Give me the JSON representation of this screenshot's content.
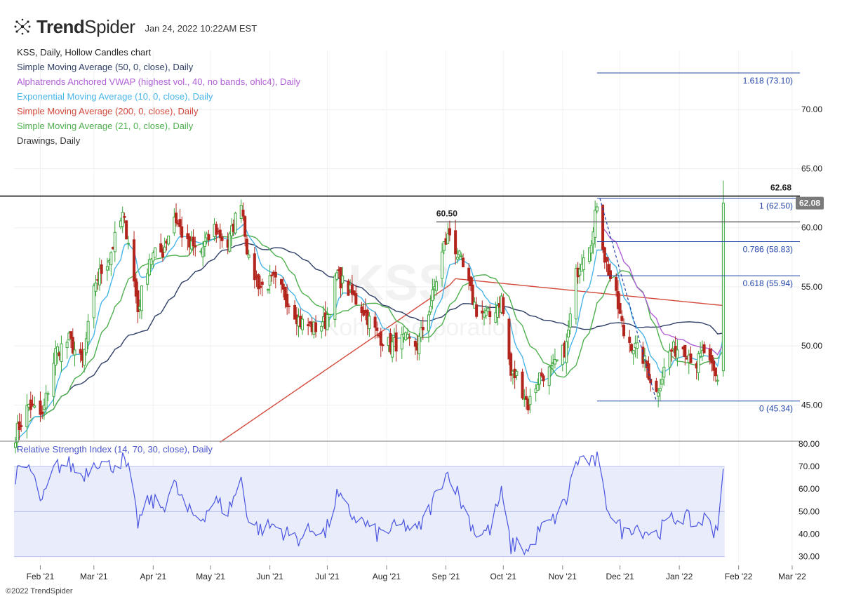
{
  "header": {
    "brand_bold": "Trend",
    "brand_rest": "Spider",
    "timestamp": "Jan 24, 2022 10:22AM EST"
  },
  "legend": [
    {
      "text": "KSS, Daily, Hollow Candles chart",
      "color": "#222222"
    },
    {
      "text": "Simple Moving Average (50, 0, close), Daily",
      "color": "#2f3e66"
    },
    {
      "text": "Alphatrends Anchored VWAP (highest vol., 40, no bands, ohlc4), Daily",
      "color": "#b05fd6"
    },
    {
      "text": "Exponential Moving Average (10, 0, close), Daily",
      "color": "#49b5e8"
    },
    {
      "text": "Simple Moving Average (200, 0, close), Daily",
      "color": "#d24a3c"
    },
    {
      "text": "Simple Moving Average (21, 0, close), Daily",
      "color": "#4fb04f"
    },
    {
      "text": "Drawings, Daily",
      "color": "#333333"
    }
  ],
  "watermark": {
    "symbol": "KSS",
    "name": "Kohl's Corporation"
  },
  "rsi_title": "Relative Strength Index (14, 70, 30, close), Daily",
  "copyright": "©2022 TrendSpider",
  "colors": {
    "up_candle": "#3aa63a",
    "down_candle": "#b3241c",
    "sma50": "#2f3e66",
    "sma200": "#d24a3c",
    "sma21": "#4fb04f",
    "ema10": "#49b5e8",
    "vwap": "#b05fd6",
    "fib": "#2346a8",
    "rsi": "#4a55e0",
    "rsi_band": "#e9ecfb"
  },
  "chart_data": {
    "type": "candlestick",
    "symbol": "KSS",
    "interval": "Daily",
    "x_tick_labels": [
      "Feb '21",
      "Mar '21",
      "Apr '21",
      "May '21",
      "Jun '21",
      "Jul '21",
      "Aug '21",
      "Sep '21",
      "Oct '21",
      "Nov '21",
      "Dec '21",
      "Jan '22",
      "Feb '22",
      "Mar '22"
    ],
    "price_axis_labels": [
      "70.00",
      "65.00",
      "60.00",
      "55.00",
      "50.00",
      "45.00"
    ],
    "price_range": [
      42.0,
      75.0
    ],
    "last_price": "62.08",
    "resistance": {
      "value": 62.68,
      "label": "62.68"
    },
    "level_60_50": {
      "value": 60.5,
      "label": "60.50"
    },
    "fib_levels": [
      {
        "label": "1.618 (73.10)",
        "value": 73.1
      },
      {
        "label": "1 (62.50)",
        "value": 62.5
      },
      {
        "label": "0.786 (58.83)",
        "value": 58.83
      },
      {
        "label": "0.618 (55.94)",
        "value": 55.94
      },
      {
        "label": "0 (45.34)",
        "value": 45.34
      }
    ],
    "price_anchors": [
      [
        "2021-01-19",
        42.5
      ],
      [
        "2021-01-26",
        45.0
      ],
      [
        "2021-02-02",
        44.0
      ],
      [
        "2021-02-09",
        49.5
      ],
      [
        "2021-02-16",
        50.5
      ],
      [
        "2021-02-23",
        48.5
      ],
      [
        "2021-03-02",
        55.5
      ],
      [
        "2021-03-09",
        57.5
      ],
      [
        "2021-03-16",
        61.0
      ],
      [
        "2021-03-19",
        59.0
      ],
      [
        "2021-03-24",
        53.0
      ],
      [
        "2021-03-30",
        57.5
      ],
      [
        "2021-04-06",
        58.0
      ],
      [
        "2021-04-12",
        61.0
      ],
      [
        "2021-04-19",
        58.5
      ],
      [
        "2021-04-26",
        58.0
      ],
      [
        "2021-05-03",
        60.0
      ],
      [
        "2021-05-10",
        58.5
      ],
      [
        "2021-05-17",
        62.5
      ],
      [
        "2021-05-21",
        57.0
      ],
      [
        "2021-05-27",
        55.0
      ],
      [
        "2021-06-03",
        55.5
      ],
      [
        "2021-06-10",
        54.0
      ],
      [
        "2021-06-17",
        52.0
      ],
      [
        "2021-06-24",
        51.5
      ],
      [
        "2021-06-30",
        52.0
      ],
      [
        "2021-07-06",
        56.0
      ],
      [
        "2021-07-13",
        54.5
      ],
      [
        "2021-07-20",
        53.0
      ],
      [
        "2021-07-27",
        51.0
      ],
      [
        "2021-08-03",
        50.0
      ],
      [
        "2021-08-10",
        50.5
      ],
      [
        "2021-08-17",
        50.0
      ],
      [
        "2021-08-24",
        53.5
      ],
      [
        "2021-08-31",
        58.5
      ],
      [
        "2021-09-03",
        59.5
      ],
      [
        "2021-09-10",
        56.5
      ],
      [
        "2021-09-17",
        53.0
      ],
      [
        "2021-09-24",
        52.5
      ],
      [
        "2021-09-30",
        54.0
      ],
      [
        "2021-10-05",
        47.5
      ],
      [
        "2021-10-08",
        47.5
      ],
      [
        "2021-10-14",
        45.0
      ],
      [
        "2021-10-20",
        47.5
      ],
      [
        "2021-10-27",
        48.0
      ],
      [
        "2021-11-03",
        50.0
      ],
      [
        "2021-11-08",
        56.0
      ],
      [
        "2021-11-12",
        58.0
      ],
      [
        "2021-11-17",
        59.5
      ],
      [
        "2021-11-19",
        62.2
      ],
      [
        "2021-11-23",
        57.5
      ],
      [
        "2021-11-29",
        54.0
      ],
      [
        "2021-12-03",
        51.0
      ],
      [
        "2021-12-08",
        50.0
      ],
      [
        "2021-12-13",
        49.0
      ],
      [
        "2021-12-20",
        46.0
      ],
      [
        "2021-12-27",
        49.5
      ],
      [
        "2022-01-03",
        50.0
      ],
      [
        "2022-01-10",
        48.5
      ],
      [
        "2022-01-14",
        49.5
      ],
      [
        "2022-01-19",
        47.5
      ],
      [
        "2022-01-21",
        47.0
      ],
      [
        "2022-01-24",
        62.08
      ]
    ],
    "rsi": {
      "title": "Relative Strength Index (14, 70, 30, close), Daily",
      "axis_labels": [
        "80.00",
        "70.00",
        "60.00",
        "50.00",
        "40.00",
        "30.00"
      ],
      "range": [
        28,
        80
      ],
      "band": [
        30,
        70
      ],
      "midline": 50,
      "anchors": [
        [
          "2021-01-19",
          66
        ],
        [
          "2021-01-26",
          70
        ],
        [
          "2021-02-02",
          54
        ],
        [
          "2021-02-09",
          70
        ],
        [
          "2021-02-16",
          71
        ],
        [
          "2021-02-23",
          66
        ],
        [
          "2021-03-02",
          73
        ],
        [
          "2021-03-09",
          70
        ],
        [
          "2021-03-16",
          73
        ],
        [
          "2021-03-19",
          68
        ],
        [
          "2021-03-24",
          45
        ],
        [
          "2021-03-30",
          55
        ],
        [
          "2021-04-06",
          52
        ],
        [
          "2021-04-12",
          62
        ],
        [
          "2021-04-19",
          50
        ],
        [
          "2021-04-26",
          47
        ],
        [
          "2021-05-03",
          55
        ],
        [
          "2021-05-10",
          50
        ],
        [
          "2021-05-17",
          64
        ],
        [
          "2021-05-21",
          46
        ],
        [
          "2021-05-27",
          42
        ],
        [
          "2021-06-03",
          44
        ],
        [
          "2021-06-10",
          40
        ],
        [
          "2021-06-17",
          38
        ],
        [
          "2021-06-24",
          43
        ],
        [
          "2021-06-30",
          40
        ],
        [
          "2021-07-06",
          57
        ],
        [
          "2021-07-13",
          49
        ],
        [
          "2021-07-20",
          45
        ],
        [
          "2021-07-27",
          40
        ],
        [
          "2021-08-03",
          42
        ],
        [
          "2021-08-10",
          44
        ],
        [
          "2021-08-17",
          41
        ],
        [
          "2021-08-24",
          52
        ],
        [
          "2021-08-31",
          66
        ],
        [
          "2021-09-03",
          67
        ],
        [
          "2021-09-10",
          52
        ],
        [
          "2021-09-17",
          40
        ],
        [
          "2021-09-24",
          42
        ],
        [
          "2021-09-30",
          58
        ],
        [
          "2021-10-05",
          34
        ],
        [
          "2021-10-08",
          36
        ],
        [
          "2021-10-14",
          32
        ],
        [
          "2021-10-20",
          42
        ],
        [
          "2021-10-27",
          46
        ],
        [
          "2021-11-03",
          55
        ],
        [
          "2021-11-08",
          72
        ],
        [
          "2021-11-12",
          74
        ],
        [
          "2021-11-17",
          71
        ],
        [
          "2021-11-19",
          74
        ],
        [
          "2021-11-23",
          55
        ],
        [
          "2021-11-29",
          46
        ],
        [
          "2021-12-03",
          40
        ],
        [
          "2021-12-08",
          44
        ],
        [
          "2021-12-13",
          42
        ],
        [
          "2021-12-20",
          40
        ],
        [
          "2021-12-27",
          46
        ],
        [
          "2022-01-03",
          48
        ],
        [
          "2022-01-10",
          44
        ],
        [
          "2022-01-14",
          47
        ],
        [
          "2022-01-19",
          42
        ],
        [
          "2022-01-21",
          44
        ],
        [
          "2022-01-24",
          69
        ]
      ]
    }
  }
}
